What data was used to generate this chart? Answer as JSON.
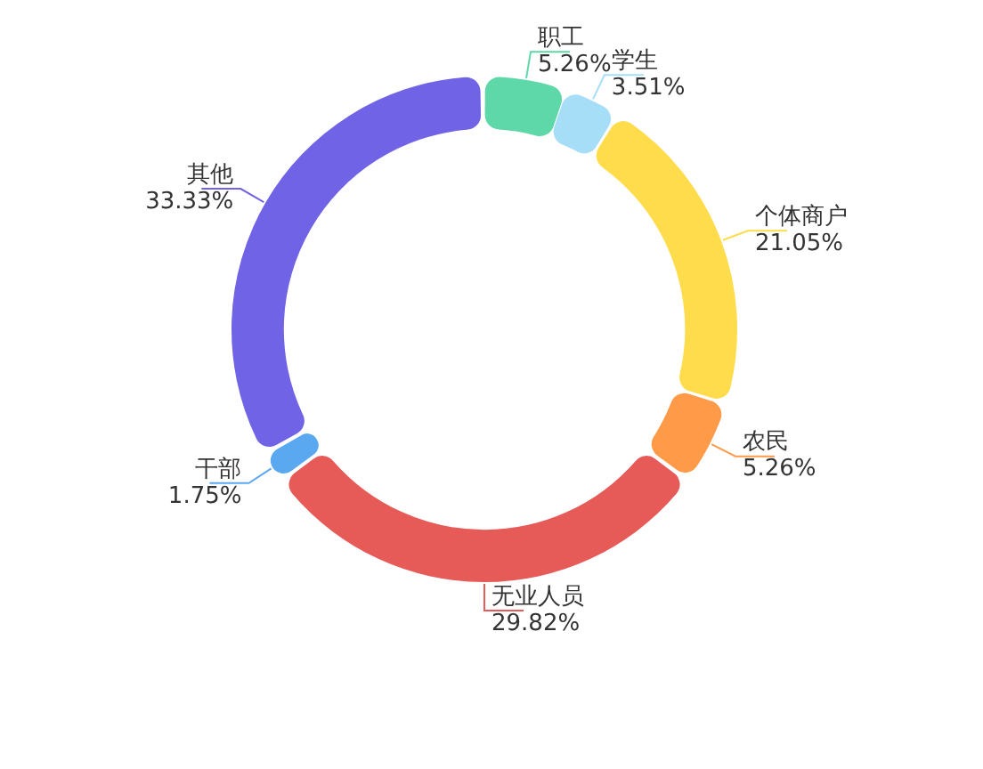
{
  "chart_data": {
    "type": "donut",
    "categories": [
      "职工",
      "学生",
      "个体商户",
      "农民",
      "无业人员",
      "干部",
      "其他"
    ],
    "values": [
      5.26,
      3.51,
      21.05,
      5.26,
      29.82,
      1.75,
      33.33
    ],
    "colors": [
      "#5ed8a9",
      "#a6def8",
      "#ffdc4b",
      "#ff9a48",
      "#e65b57",
      "#5aa8ef",
      "#7163e5"
    ],
    "value_labels": [
      "5.26%",
      "3.51%",
      "21.05%",
      "5.26%",
      "29.82%",
      "1.75%",
      "33.33%"
    ],
    "legend": false
  }
}
